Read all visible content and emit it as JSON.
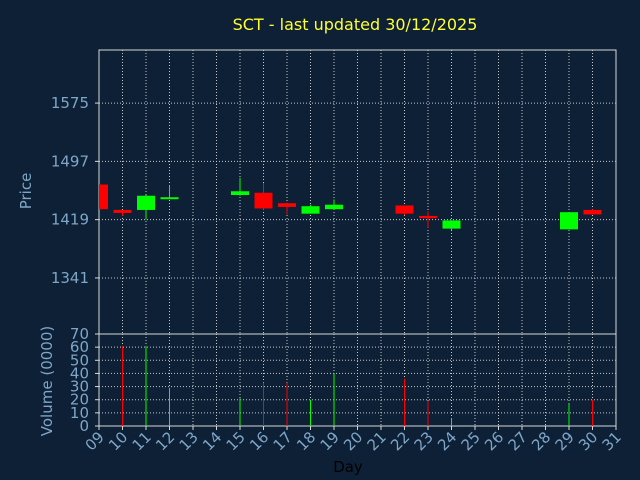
{
  "chart_data": {
    "type": "candlestick",
    "title": "SCT - last updated 30/12/2025",
    "xlabel": "Day",
    "ylabel_price": "Price",
    "ylabel_volume": "Volume (0000)",
    "x_ticks": [
      "09",
      "10",
      "11",
      "12",
      "13",
      "14",
      "15",
      "16",
      "17",
      "18",
      "19",
      "20",
      "21",
      "22",
      "23",
      "24",
      "25",
      "26",
      "27",
      "28",
      "29",
      "30",
      "31"
    ],
    "price_ticks": [
      1341,
      1419,
      1497,
      1575
    ],
    "price_ylim": [
      1266,
      1646
    ],
    "volume_ticks": [
      0,
      10,
      20,
      30,
      40,
      50,
      60,
      70
    ],
    "volume_ylim": [
      0,
      70
    ],
    "grid": true,
    "colors": {
      "up": "#00ff00",
      "down": "#ff0000",
      "background": "#0d2035",
      "title": "#ffff33",
      "axis_text": "#7ea6c8"
    },
    "candles": [
      {
        "day": "09",
        "open": 1466,
        "high": 1466,
        "low": 1433,
        "close": 1433
      },
      {
        "day": "10",
        "open": 1432,
        "high": 1432,
        "low": 1424,
        "close": 1428
      },
      {
        "day": "11",
        "open": 1432,
        "high": 1452,
        "low": 1419,
        "close": 1451
      },
      {
        "day": "12",
        "open": 1448,
        "high": 1465,
        "low": 1447,
        "close": 1449
      },
      {
        "day": "15",
        "open": 1452,
        "high": 1475,
        "low": 1451,
        "close": 1457
      },
      {
        "day": "16",
        "open": 1455,
        "high": 1468,
        "low": 1432,
        "close": 1434
      },
      {
        "day": "17",
        "open": 1441,
        "high": 1442,
        "low": 1426,
        "close": 1436
      },
      {
        "day": "18",
        "open": 1427,
        "high": 1439,
        "low": 1427,
        "close": 1437
      },
      {
        "day": "19",
        "open": 1433,
        "high": 1446,
        "low": 1432,
        "close": 1439
      },
      {
        "day": "22",
        "open": 1438,
        "high": 1438,
        "low": 1425,
        "close": 1427
      },
      {
        "day": "23",
        "open": 1424,
        "high": 1430,
        "low": 1408,
        "close": 1421
      },
      {
        "day": "24",
        "open": 1407,
        "high": 1418,
        "low": 1405,
        "close": 1418
      },
      {
        "day": "29",
        "open": 1406,
        "high": 1429,
        "low": 1406,
        "close": 1429
      },
      {
        "day": "30",
        "open": 1432,
        "high": 1433,
        "low": 1426,
        "close": 1426
      }
    ],
    "volume": [
      {
        "day": "09",
        "value": 0
      },
      {
        "day": "10",
        "value": 61
      },
      {
        "day": "11",
        "value": 61
      },
      {
        "day": "12",
        "value": 29
      },
      {
        "day": "15",
        "value": 21
      },
      {
        "day": "16",
        "value": 33
      },
      {
        "day": "17",
        "value": 33
      },
      {
        "day": "18",
        "value": 20
      },
      {
        "day": "19",
        "value": 40
      },
      {
        "day": "22",
        "value": 36
      },
      {
        "day": "23",
        "value": 19
      },
      {
        "day": "24",
        "value": 6
      },
      {
        "day": "29",
        "value": 17
      },
      {
        "day": "30",
        "value": 20
      }
    ]
  }
}
